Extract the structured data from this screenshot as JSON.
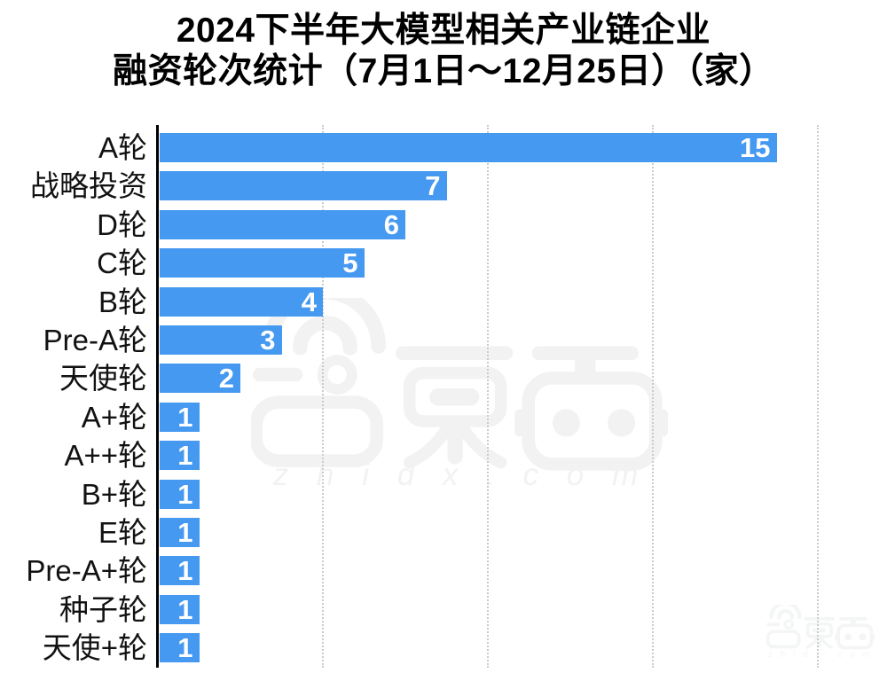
{
  "title": {
    "line1": "2024下半年大模型相关产业链企业",
    "line2": "融资轮次统计（7月1日～12月25日）（家）"
  },
  "chart_data": {
    "type": "bar",
    "orientation": "horizontal",
    "title": "2024下半年大模型相关产业链企业融资轮次统计（7月1日～12月25日）（家）",
    "unit": "家",
    "categories": [
      "A轮",
      "战略投资",
      "D轮",
      "C轮",
      "B轮",
      "Pre-A轮",
      "天使轮",
      "A+轮",
      "A++轮",
      "B+轮",
      "E轮",
      "Pre-A+轮",
      "种子轮",
      "天使+轮"
    ],
    "values": [
      15,
      7,
      6,
      5,
      4,
      3,
      2,
      1,
      1,
      1,
      1,
      1,
      1,
      1
    ],
    "xlim": [
      0,
      17.5
    ],
    "x_gridlines": [
      4,
      8,
      12,
      16
    ],
    "grid": "dotted-vertical",
    "legend": "none",
    "value_labels": "inside-end",
    "bar_color": "#4599F0",
    "value_label_color": "#FFFFFF",
    "axis_color": "#000000",
    "gridline_color": "#CBCBCB",
    "category_label_color": "#121212"
  },
  "watermark": {
    "center_logo": "zhidx-logo",
    "center_domain_text": "z h i d x . c o m",
    "corner_logo": "zhidx-logo",
    "corner_domain_text": "z h i d x . c o m",
    "center_color": "#F2F2F2",
    "corner_color": "#F4F5F5"
  }
}
